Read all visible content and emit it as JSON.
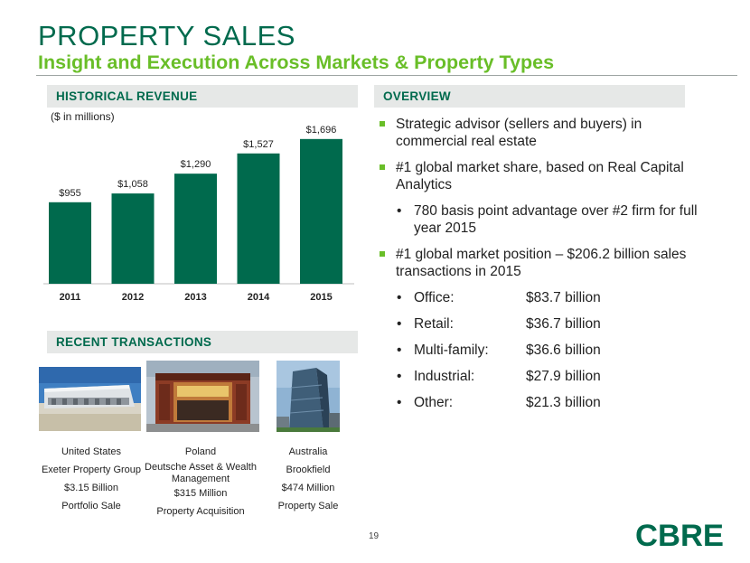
{
  "header": {
    "title": "PROPERTY SALES",
    "subtitle": "Insight and Execution Across Markets & Property Types"
  },
  "historical": {
    "heading": "HISTORICAL REVENUE",
    "unit_note": "($ in millions)"
  },
  "chart_data": {
    "type": "bar",
    "categories": [
      "2011",
      "2012",
      "2013",
      "2014",
      "2015"
    ],
    "values": [
      955,
      1058,
      1290,
      1527,
      1696
    ],
    "data_labels": [
      "$955",
      "$1,058",
      "$1,290",
      "$1,527",
      "$1,696"
    ],
    "ylim": [
      0,
      1800
    ],
    "grid": false,
    "bar_color": "#006A4D"
  },
  "recent": {
    "heading": "RECENT TRANSACTIONS",
    "transactions": [
      {
        "country": "United States",
        "party": "Exeter Property Group",
        "amount": "$3.15 Billion",
        "type": "Portfolio Sale"
      },
      {
        "country": "Poland",
        "party": "Deutsche Asset & Wealth Management",
        "amount": "$315 Million",
        "type": "Property Acquisition"
      },
      {
        "country": "Australia",
        "party": "Brookfield",
        "amount": "$474 Million",
        "type": "Property Sale"
      }
    ]
  },
  "overview": {
    "heading": "OVERVIEW",
    "b1": "Strategic advisor (sellers and buyers) in commercial real estate",
    "b2": "#1 global market share, based on Real Capital Analytics",
    "b2_sub": "780 basis point advantage over #2 firm for full year 2015",
    "b3": "#1 global market position – $206.2 billion sales transactions in 2015",
    "breakdown": [
      {
        "label": "Office:",
        "value": "$83.7 billion"
      },
      {
        "label": "Retail:",
        "value": "$36.7 billion"
      },
      {
        "label": "Multi-family:",
        "value": "$36.6 billion"
      },
      {
        "label": "Industrial:",
        "value": "$27.9 billion"
      },
      {
        "label": "Other:",
        "value": "$21.3 billion"
      }
    ],
    "sub_bullet_glyph": "•"
  },
  "footer": {
    "page_number": "19",
    "logo_text": "CBRE",
    "logo_color": "#006A4D"
  },
  "colors": {
    "primary_green": "#006A4D",
    "accent_green": "#69BE28",
    "header_band": "#E6E8E7"
  }
}
